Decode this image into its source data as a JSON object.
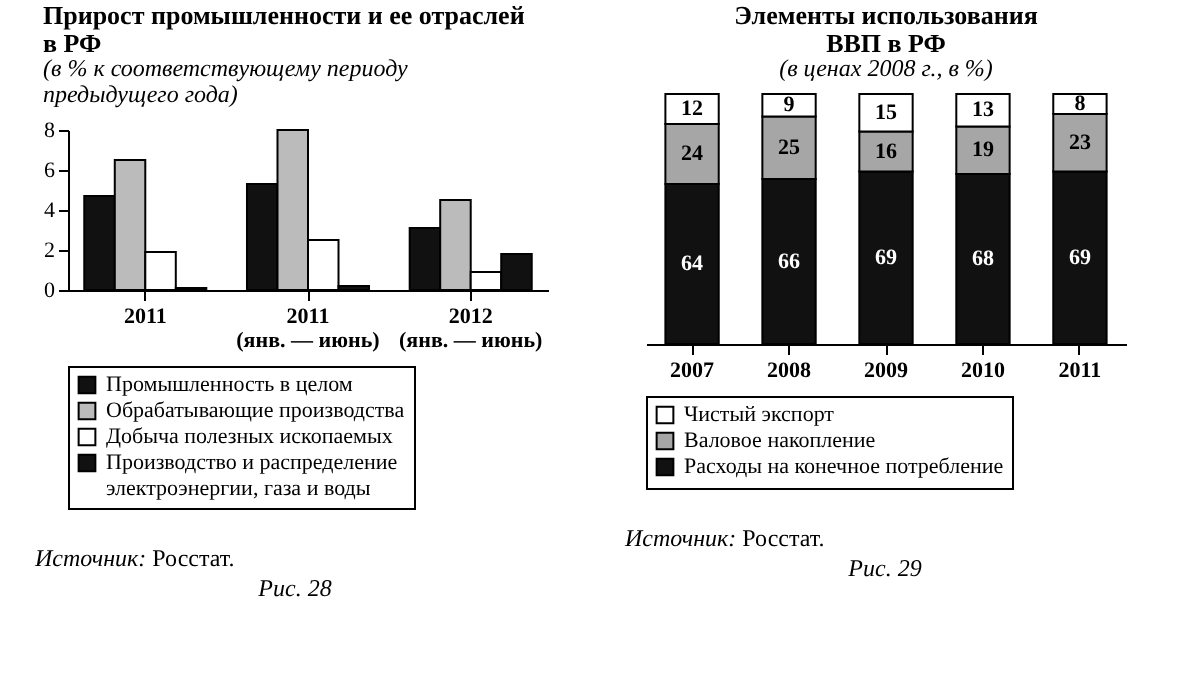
{
  "chart_data": [
    {
      "type": "bar",
      "title": "Прирост промышленности и ее отраслей\nв РФ",
      "subtitle": "(в % к соответствующему периоду\nпредыдущего года)",
      "categories": [
        "2011",
        "2011\n(янв. — июнь)",
        "2012\n(янв. — июнь)"
      ],
      "series": [
        {
          "name": "Промышленность в целом",
          "color": "#111111",
          "values": [
            4.7,
            5.3,
            3.1
          ]
        },
        {
          "name": "Обрабатывающие производства",
          "color": "#bbbbbb",
          "values": [
            6.5,
            8.0,
            4.5
          ]
        },
        {
          "name": "Добыча полезных ископаемых",
          "color": "#ffffff",
          "values": [
            1.9,
            2.5,
            0.9
          ]
        },
        {
          "name": "Производство и распределение\nэлектроэнергии, газа и воды",
          "color": "#111111",
          "values": [
            0.1,
            0.2,
            1.8
          ]
        }
      ],
      "ylim": [
        0,
        8
      ],
      "yticks": [
        0,
        2,
        4,
        6,
        8
      ],
      "grid": false,
      "legend": "bottom",
      "annotations": [
        "Источник: Росстат.",
        "Рис. 28"
      ]
    },
    {
      "type": "bar",
      "title": "Элементы использования\nВВП в РФ",
      "subtitle": "(в ценах 2008 г., в %)",
      "categories": [
        "2007",
        "2008",
        "2009",
        "2010",
        "2011"
      ],
      "stacked": true,
      "data_labels": true,
      "tick_labels": "x",
      "series": [
        {
          "name": "Расходы на конечное потребление",
          "color": "#111111",
          "values": [
            64,
            66,
            69,
            68,
            69
          ]
        },
        {
          "name": "Валовое накопление",
          "color": "#a6a6a6",
          "values": [
            24,
            25,
            16,
            19,
            23
          ]
        },
        {
          "name": "Чистый экспорт",
          "color": "#ffffff",
          "values": [
            12,
            9,
            15,
            13,
            8
          ]
        }
      ],
      "grid": false,
      "legend": "bottom",
      "annotations": [
        "Источник: Росстат.",
        "Рис. 29"
      ]
    }
  ]
}
